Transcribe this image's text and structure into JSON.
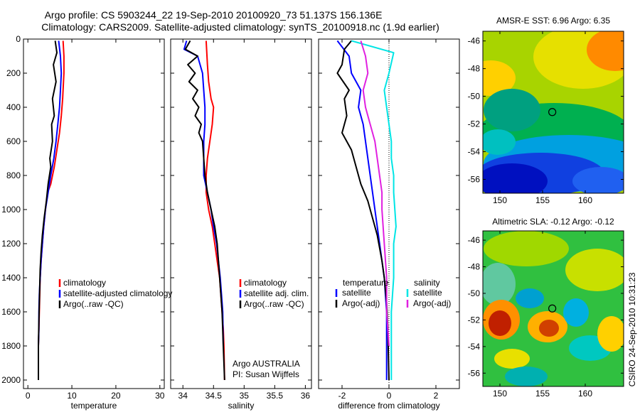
{
  "title": {
    "line1": "Argo profile: CS 5903244_22 19-Sep-2010 20100920_73 51.137S 156.136E",
    "line2": "Climatology: CARS2009. Satellite-adjusted climatology: synTS_20100918.nc (1.9d earlier)"
  },
  "colors": {
    "climatology": "#ff0000",
    "satellite": "#0000ff",
    "argo": "#000000",
    "sal_satellite": "#00e5e5",
    "sal_argo": "#e020e0"
  },
  "depth_ticks": [
    "0",
    "200",
    "400",
    "600",
    "800",
    "1000",
    "1200",
    "1400",
    "1600",
    "1800",
    "2000"
  ],
  "chart_data": [
    {
      "type": "line",
      "xlabel": "temperature",
      "xlim": [
        -1,
        31
      ],
      "ylim": [
        2050,
        0
      ],
      "xticks": [
        "0",
        "10",
        "20",
        "30"
      ],
      "series": [
        {
          "name": "climatology",
          "color": "#ff0000",
          "x": [
            8.0,
            8.2,
            8.2,
            8.0,
            7.9,
            7.6,
            7.2,
            6.6,
            6.0,
            5.2,
            4.5,
            4.0,
            3.6,
            3.3,
            3.0,
            2.8,
            2.7,
            2.6,
            2.5,
            2.4,
            2.4
          ],
          "y": [
            10,
            100,
            200,
            300,
            350,
            450,
            550,
            650,
            750,
            850,
            900,
            1000,
            1100,
            1200,
            1300,
            1400,
            1500,
            1600,
            1700,
            1800,
            2000
          ]
        },
        {
          "name": "satellite-adjusted climatology",
          "color": "#0000ff",
          "x": [
            7.0,
            7.4,
            7.6,
            7.4,
            7.2,
            6.8,
            6.4,
            5.9,
            5.2,
            4.6,
            4.0,
            3.6,
            3.3,
            3.0,
            2.8,
            2.6,
            2.5,
            2.5,
            2.4,
            2.4
          ],
          "y": [
            10,
            100,
            200,
            300,
            400,
            500,
            600,
            700,
            800,
            900,
            1000,
            1100,
            1200,
            1300,
            1400,
            1500,
            1600,
            1700,
            1800,
            2000
          ]
        },
        {
          "name": "Argo(..raw -QC)",
          "color": "#000000",
          "x": [
            6.2,
            6.6,
            5.8,
            6.4,
            5.6,
            6.0,
            5.4,
            5.6,
            5.0,
            5.2,
            4.6,
            4.2,
            3.7,
            3.3,
            3.0,
            2.8,
            2.7,
            2.6,
            2.5,
            2.4,
            2.4
          ],
          "y": [
            10,
            80,
            150,
            250,
            350,
            450,
            500,
            600,
            700,
            750,
            850,
            950,
            1050,
            1150,
            1250,
            1350,
            1450,
            1550,
            1650,
            1800,
            2000
          ]
        }
      ],
      "legend": {
        "position": "lower-right",
        "entries": [
          "climatology",
          "satellite-adjusted climatology",
          "Argo(..raw -QC)"
        ]
      }
    },
    {
      "type": "line",
      "xlabel": "salinity",
      "xlim": [
        33.8,
        36.1
      ],
      "ylim": [
        2050,
        0
      ],
      "xticks": [
        "34",
        "34.5",
        "35",
        "35.5",
        "36"
      ],
      "series": [
        {
          "name": "climatology",
          "color": "#ff0000",
          "x": [
            34.38,
            34.4,
            34.42,
            34.46,
            34.5,
            34.48,
            34.44,
            34.4,
            34.38,
            34.38,
            34.42,
            34.48,
            34.52,
            34.56,
            34.6,
            34.62,
            34.64,
            34.66,
            34.67,
            34.68
          ],
          "y": [
            10,
            150,
            250,
            350,
            400,
            500,
            600,
            700,
            800,
            900,
            1000,
            1100,
            1200,
            1300,
            1400,
            1500,
            1600,
            1700,
            1800,
            2000
          ]
        },
        {
          "name": "satellite adj. clim.",
          "color": "#0000ff",
          "x": [
            34.06,
            34.02,
            34.24,
            34.32,
            34.34,
            34.36,
            34.36,
            34.34,
            34.34,
            34.34,
            34.4,
            34.46,
            34.5,
            34.55,
            34.58,
            34.61,
            34.63,
            34.65,
            34.66
          ],
          "y": [
            10,
            60,
            100,
            200,
            300,
            400,
            500,
            600,
            700,
            800,
            900,
            1000,
            1100,
            1200,
            1300,
            1400,
            1500,
            1600,
            1800
          ]
        },
        {
          "name": "Argo(..raw -QC)",
          "color": "#000000",
          "x": [
            34.12,
            34.04,
            34.24,
            34.08,
            34.2,
            34.1,
            34.24,
            34.16,
            34.26,
            34.2,
            34.3,
            34.26,
            34.32,
            34.34,
            34.36,
            34.4,
            34.46,
            34.52,
            34.56,
            34.6,
            34.64,
            34.66,
            34.68
          ],
          "y": [
            10,
            60,
            100,
            150,
            200,
            250,
            300,
            350,
            400,
            450,
            500,
            550,
            600,
            700,
            800,
            900,
            1000,
            1100,
            1200,
            1400,
            1600,
            1800,
            2000
          ]
        }
      ],
      "legend": {
        "position": "lower-right",
        "entries": [
          "climatology",
          "satellite adj. clim.",
          "Argo(..raw -QC)"
        ]
      },
      "annotation": {
        "line1": "Argo AUSTRALIA",
        "line2": "PI: Susan Wijffels"
      }
    },
    {
      "type": "line",
      "xlabel": "difference from climatology",
      "xlim": [
        -3,
        3
      ],
      "ylim": [
        2050,
        0
      ],
      "xticks": [
        "-2",
        "0",
        "2"
      ],
      "zero_line": true,
      "series": [
        {
          "name": "temperature satellite",
          "color": "#0000ff",
          "x": [
            -2.2,
            -1.7,
            -1.6,
            -1.2,
            -1.3,
            -1.1,
            -1.0,
            -0.9,
            -0.8,
            -0.7,
            -0.6,
            -0.5,
            -0.4,
            -0.3,
            -0.2,
            -0.15,
            -0.1,
            -0.1,
            -0.1
          ],
          "y": [
            10,
            100,
            200,
            300,
            400,
            500,
            600,
            700,
            800,
            900,
            1000,
            1100,
            1200,
            1300,
            1400,
            1500,
            1600,
            1800,
            2000
          ]
        },
        {
          "name": "temperature Argo(-adj)",
          "color": "#000000",
          "x": [
            -1.6,
            -1.9,
            -2.0,
            -2.2,
            -1.7,
            -1.9,
            -1.8,
            -2.0,
            -1.6,
            -1.4,
            -1.2,
            -0.9,
            -0.7,
            -0.5,
            -0.3,
            -0.2,
            -0.1,
            -0.05,
            0.0
          ],
          "y": [
            10,
            60,
            150,
            200,
            300,
            350,
            450,
            550,
            650,
            750,
            850,
            950,
            1050,
            1150,
            1300,
            1400,
            1550,
            1700,
            2000
          ]
        },
        {
          "name": "salinity satellite",
          "color": "#00e5e5",
          "x": [
            -1.6,
            0.2,
            0.0,
            -0.2,
            -0.1,
            0.0,
            0.1,
            0.1,
            0.2,
            0.2,
            0.3,
            0.2,
            0.2,
            0.1,
            0.1,
            0.1,
            0.1
          ],
          "y": [
            10,
            80,
            200,
            300,
            400,
            500,
            600,
            700,
            800,
            900,
            1100,
            1200,
            1400,
            1600,
            1800,
            1900,
            2000
          ]
        },
        {
          "name": "salinity Argo(-adj)",
          "color": "#e020e0",
          "x": [
            -1.2,
            -1.0,
            -0.9,
            -1.1,
            -1.0,
            -0.8,
            -0.6,
            -0.5,
            -0.4,
            -0.3,
            -0.3,
            -0.2,
            -0.1,
            -0.1,
            0.0
          ],
          "y": [
            10,
            100,
            200,
            300,
            400,
            500,
            600,
            700,
            800,
            900,
            1000,
            1200,
            1400,
            1600,
            1800
          ]
        }
      ],
      "legend": {
        "position": "lower",
        "headers": [
          "temperature",
          "salinity"
        ],
        "entries": [
          "satellite",
          "Argo(-adj)",
          "satellite",
          "Argo(-adj)"
        ]
      }
    },
    {
      "type": "heatmap",
      "title": "AMSR-E SST: 6.96 Argo: 6.35",
      "xlim": [
        148,
        164.5
      ],
      "ylim": [
        -57,
        -45.3
      ],
      "xticks": [
        "150",
        "155",
        "160"
      ],
      "yticks": [
        "-46",
        "-48",
        "-50",
        "-52",
        "-54",
        "-56"
      ],
      "marker": {
        "lon": 156.136,
        "lat": -51.137
      }
    },
    {
      "type": "heatmap",
      "title": "Altimetric SLA: -0.12 Argo: -0.12",
      "xlim": [
        148,
        164.5
      ],
      "ylim": [
        -57,
        -45.3
      ],
      "xticks": [
        "150",
        "155",
        "160"
      ],
      "yticks": [
        "-46",
        "-48",
        "-50",
        "-52",
        "-54",
        "-56"
      ],
      "marker": {
        "lon": 156.136,
        "lat": -51.137
      }
    }
  ],
  "credit": "CSIRO 24-Sep-2010 10:31:23"
}
